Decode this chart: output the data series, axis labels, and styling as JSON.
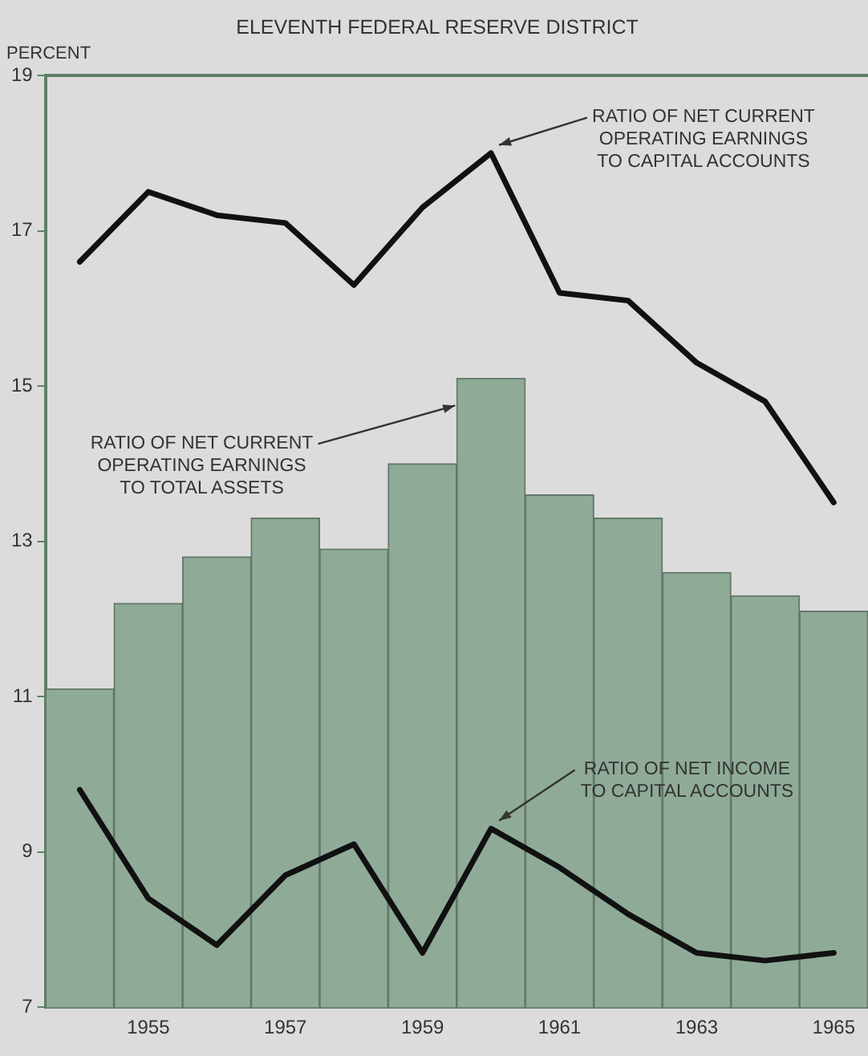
{
  "chart_data": {
    "type": "bar",
    "title": "ELEVENTH FEDERAL RESERVE DISTRICT",
    "ylabel": "PERCENT",
    "categories": [
      null,
      "1955",
      null,
      "1957",
      null,
      "1959",
      null,
      "1961",
      null,
      "1963",
      null,
      "1965"
    ],
    "series": [
      {
        "name": "RATIO OF NET CURRENT OPERATING EARNINGS TO TOTAL ASSETS",
        "color": "#8fab98",
        "values": [
          11.1,
          12.2,
          12.8,
          13.3,
          12.9,
          14.0,
          15.1,
          13.6,
          13.3,
          12.6,
          12.3,
          12.1
        ]
      },
      {
        "name": "RATIO OF NET CURRENT OPERATING EARNINGS TO CAPITAL ACCOUNTS",
        "type": "line",
        "color": "#111111",
        "values": [
          16.6,
          17.5,
          17.2,
          17.1,
          16.3,
          17.3,
          18.0,
          16.2,
          16.1,
          15.3,
          14.8,
          13.5
        ]
      },
      {
        "name": "RATIO OF NET INCOME TO CAPITAL ACCOUNTS",
        "type": "line",
        "color": "#111111",
        "values": [
          9.8,
          8.4,
          7.8,
          8.7,
          9.1,
          7.7,
          9.3,
          8.8,
          8.2,
          7.7,
          7.6,
          7.7
        ]
      }
    ],
    "ylim": [
      7,
      19
    ],
    "yticks": [
      7,
      9,
      11,
      13,
      15,
      17,
      19
    ],
    "grid": false,
    "legend": false,
    "marker": "none",
    "line_style": "solid"
  }
}
